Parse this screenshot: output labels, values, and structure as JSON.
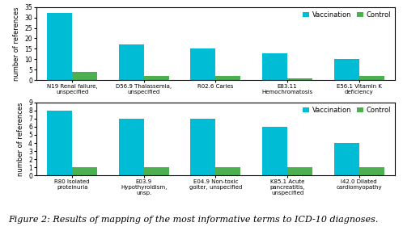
{
  "chart_data": [
    {
      "type": "bar",
      "categories": [
        "N19 Renal failure, unspecified",
        "D56.9 Thalassemia, unspecified",
        "R02.6 Caries",
        "E83.11 Hemochromatosis",
        "E56.1 Vitamin K deficiency"
      ],
      "series": [
        {
          "name": "Vaccination",
          "color": "#00bcd4",
          "values": [
            32,
            17,
            15,
            13,
            10
          ]
        },
        {
          "name": "Control",
          "color": "#4caf50",
          "values": [
            4,
            2,
            2,
            1,
            2
          ]
        }
      ],
      "ylabel": "number of references",
      "ylim": [
        0,
        35
      ],
      "yticks": [
        0,
        5,
        10,
        15,
        20,
        25,
        30,
        35
      ],
      "legend": "upper right",
      "grid": false
    },
    {
      "type": "bar",
      "categories": [
        "R80 Isolated proteinuria",
        "E03.9 Hypothyroidism, unsp.",
        "E04.9 Non-toxic goiter, unspecified",
        "K85.1 Acute pancreatitis,\nunspecified",
        "I42.0 Dilated cardiomyopathy"
      ],
      "series": [
        {
          "name": "Vaccination",
          "color": "#00bcd4",
          "values": [
            8,
            7,
            7,
            6,
            4
          ]
        },
        {
          "name": "Control",
          "color": "#4caf50",
          "values": [
            1,
            1,
            1,
            1,
            1
          ]
        }
      ],
      "ylabel": "number of references",
      "ylim": [
        0,
        9
      ],
      "yticks": [
        0,
        1,
        2,
        3,
        4,
        5,
        6,
        7,
        8,
        9
      ],
      "legend": "upper right",
      "grid": false
    }
  ],
  "caption": "Figure 2: Results of mapping of the most informative terms to ICD-10 diagnoses."
}
